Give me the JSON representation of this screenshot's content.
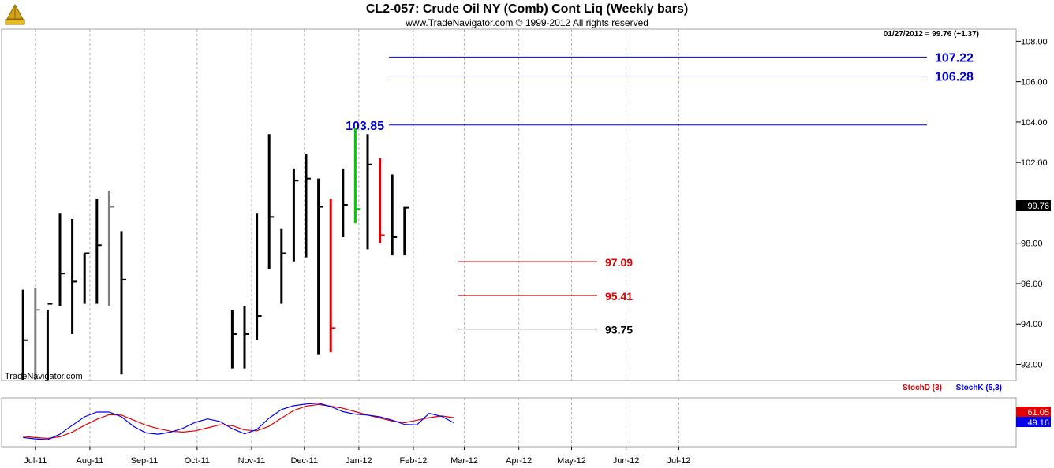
{
  "header": {
    "title": "CL2-057:  Crude Oil NY (Comb) Cont Liq  (Weekly bars)",
    "subtitle": "www.TradeNavigator.com © 1999-2012 All rights reserved",
    "readout": "01/27/2012 = 99.76 (+1.37)",
    "watermark": "TradeNavigator.com"
  },
  "colors": {
    "bar_default": "#000000",
    "bar_gray": "#808080",
    "bar_red": "#e00000",
    "bar_green": "#00cc00",
    "resistance": "#0000cc",
    "support_red": "#e00000",
    "support_black": "#000000",
    "stoch_d": "#e00000",
    "stoch_k": "#0000ee"
  },
  "chart_data": [
    {
      "type": "ohlc",
      "title": "CL2-057:  Crude Oil NY (Comb) Cont Liq  (Weekly bars)",
      "x_ticks": [
        "Jul-11",
        "Aug-11",
        "Sep-11",
        "Oct-11",
        "Nov-11",
        "Dec-11",
        "Jan-12",
        "Feb-12",
        "Mar-12",
        "Apr-12",
        "May-12",
        "Jun-12",
        "Jul-12"
      ],
      "ylim": [
        91.2,
        108.6
      ],
      "y_ticks": [
        "92.00",
        "94.00",
        "96.00",
        "98.00",
        "100.00",
        "102.00",
        "104.00",
        "106.00",
        "108.00"
      ],
      "last_price": "99.76",
      "bars": [
        {
          "week": "2011-06-24",
          "high": 95.7,
          "low": 91.2,
          "close": 93.2,
          "color": "black"
        },
        {
          "week": "2011-07-01",
          "high": 95.8,
          "low": 91.2,
          "close": 94.7,
          "color": "gray"
        },
        {
          "week": "2011-07-08",
          "high": 94.7,
          "low": 91.2,
          "close": 95.0,
          "color": "black"
        },
        {
          "week": "2011-07-15",
          "high": 99.5,
          "low": 94.9,
          "close": 96.5,
          "color": "black"
        },
        {
          "week": "2011-07-22",
          "high": 99.2,
          "low": 93.5,
          "close": 96.1,
          "color": "black"
        },
        {
          "week": "2011-07-29",
          "high": 97.5,
          "low": 95.0,
          "close": 97.5,
          "color": "black"
        },
        {
          "week": "2011-08-05",
          "high": 100.2,
          "low": 95.0,
          "close": 97.9,
          "color": "black"
        },
        {
          "week": "2011-08-12",
          "high": 100.6,
          "low": 94.9,
          "close": 99.8,
          "color": "gray"
        },
        {
          "week": "2011-08-19",
          "high": 98.6,
          "low": 91.5,
          "close": 96.2,
          "color": "black"
        },
        {
          "week": "2011-10-21",
          "high": 94.7,
          "low": 91.8,
          "close": 93.5,
          "color": "black"
        },
        {
          "week": "2011-10-28",
          "high": 94.9,
          "low": 91.8,
          "close": 93.5,
          "color": "black"
        },
        {
          "week": "2011-11-04",
          "high": 99.5,
          "low": 93.2,
          "close": 94.4,
          "color": "black"
        },
        {
          "week": "2011-11-11",
          "high": 103.4,
          "low": 96.7,
          "close": 99.3,
          "color": "black"
        },
        {
          "week": "2011-11-18",
          "high": 98.7,
          "low": 95.0,
          "close": 97.5,
          "color": "black"
        },
        {
          "week": "2011-11-25",
          "high": 101.7,
          "low": 97.1,
          "close": 101.1,
          "color": "black"
        },
        {
          "week": "2011-12-02",
          "high": 102.4,
          "low": 97.3,
          "close": 101.2,
          "color": "black"
        },
        {
          "week": "2011-12-09",
          "high": 101.2,
          "low": 92.5,
          "close": 99.8,
          "color": "black"
        },
        {
          "week": "2011-12-16",
          "high": 100.2,
          "low": 92.6,
          "close": 93.8,
          "color": "red"
        },
        {
          "week": "2011-12-23",
          "high": 101.7,
          "low": 98.3,
          "close": 99.9,
          "color": "black"
        },
        {
          "week": "2011-12-30",
          "high": 103.7,
          "low": 99.0,
          "close": 99.7,
          "color": "green"
        },
        {
          "week": "2012-01-06",
          "high": 103.4,
          "low": 97.7,
          "close": 101.9,
          "color": "black"
        },
        {
          "week": "2012-01-13",
          "high": 102.2,
          "low": 98.0,
          "close": 98.4,
          "color": "red"
        },
        {
          "week": "2012-01-20",
          "high": 101.4,
          "low": 97.4,
          "close": 98.3,
          "color": "black"
        },
        {
          "week": "2012-01-27",
          "high": 99.8,
          "low": 97.4,
          "close": 99.76,
          "color": "black"
        }
      ],
      "levels": [
        {
          "value": 107.22,
          "label": "107.22",
          "color": "blue"
        },
        {
          "value": 106.28,
          "label": "106.28",
          "color": "blue"
        },
        {
          "value": 103.85,
          "label": "103.85",
          "color": "blue"
        },
        {
          "value": 97.09,
          "label": "97.09",
          "color": "red"
        },
        {
          "value": 95.41,
          "label": "95.41",
          "color": "red"
        },
        {
          "value": 93.75,
          "label": "93.75",
          "color": "black"
        }
      ]
    },
    {
      "type": "line",
      "ylim": [
        0,
        100
      ],
      "series": [
        {
          "name": "StochD (3)",
          "color": "red",
          "last_value": "61.05",
          "values": [
            {
              "week": "2011-06-24",
              "value": 17
            },
            {
              "week": "2011-07-01",
              "value": 14
            },
            {
              "week": "2011-07-08",
              "value": 12
            },
            {
              "week": "2011-07-15",
              "value": 16
            },
            {
              "week": "2011-07-22",
              "value": 27
            },
            {
              "week": "2011-07-29",
              "value": 43
            },
            {
              "week": "2011-08-05",
              "value": 57
            },
            {
              "week": "2011-08-12",
              "value": 68
            },
            {
              "week": "2011-08-19",
              "value": 67
            },
            {
              "week": "2011-08-26",
              "value": 55
            },
            {
              "week": "2011-09-02",
              "value": 43
            },
            {
              "week": "2011-09-09",
              "value": 35
            },
            {
              "week": "2011-09-16",
              "value": 29
            },
            {
              "week": "2011-09-23",
              "value": 27
            },
            {
              "week": "2011-09-30",
              "value": 30
            },
            {
              "week": "2011-10-07",
              "value": 37
            },
            {
              "week": "2011-10-14",
              "value": 44
            },
            {
              "week": "2011-10-21",
              "value": 42
            },
            {
              "week": "2011-10-28",
              "value": 32
            },
            {
              "week": "2011-11-04",
              "value": 30
            },
            {
              "week": "2011-11-11",
              "value": 41
            },
            {
              "week": "2011-11-18",
              "value": 60
            },
            {
              "week": "2011-11-25",
              "value": 78
            },
            {
              "week": "2011-12-02",
              "value": 88
            },
            {
              "week": "2011-12-09",
              "value": 92
            },
            {
              "week": "2011-12-16",
              "value": 88
            },
            {
              "week": "2011-12-23",
              "value": 83
            },
            {
              "week": "2011-12-30",
              "value": 75
            },
            {
              "week": "2012-01-06",
              "value": 67
            },
            {
              "week": "2012-01-13",
              "value": 60
            },
            {
              "week": "2012-01-20",
              "value": 53
            },
            {
              "week": "2012-01-27",
              "value": 49
            },
            {
              "week": "2012-02-03",
              "value": 55
            },
            {
              "week": "2012-02-10",
              "value": 61
            },
            {
              "week": "2012-02-17",
              "value": 65
            },
            {
              "week": "2012-02-24",
              "value": 61
            }
          ]
        },
        {
          "name": "StochK (5,3)",
          "color": "blue",
          "last_value": "49.16",
          "values": [
            {
              "week": "2011-06-24",
              "value": 14
            },
            {
              "week": "2011-07-01",
              "value": 11
            },
            {
              "week": "2011-07-08",
              "value": 9
            },
            {
              "week": "2011-07-15",
              "value": 22
            },
            {
              "week": "2011-07-22",
              "value": 43
            },
            {
              "week": "2011-07-29",
              "value": 63
            },
            {
              "week": "2011-08-05",
              "value": 74
            },
            {
              "week": "2011-08-12",
              "value": 74
            },
            {
              "week": "2011-08-19",
              "value": 63
            },
            {
              "week": "2011-08-26",
              "value": 40
            },
            {
              "week": "2011-09-02",
              "value": 25
            },
            {
              "week": "2011-09-09",
              "value": 22
            },
            {
              "week": "2011-09-16",
              "value": 27
            },
            {
              "week": "2011-09-23",
              "value": 36
            },
            {
              "week": "2011-09-30",
              "value": 50
            },
            {
              "week": "2011-10-07",
              "value": 58
            },
            {
              "week": "2011-10-14",
              "value": 52
            },
            {
              "week": "2011-10-21",
              "value": 35
            },
            {
              "week": "2011-10-28",
              "value": 23
            },
            {
              "week": "2011-11-04",
              "value": 33
            },
            {
              "week": "2011-11-11",
              "value": 60
            },
            {
              "week": "2011-11-18",
              "value": 80
            },
            {
              "week": "2011-11-25",
              "value": 89
            },
            {
              "week": "2011-12-02",
              "value": 93
            },
            {
              "week": "2011-12-09",
              "value": 95
            },
            {
              "week": "2011-12-16",
              "value": 87
            },
            {
              "week": "2011-12-23",
              "value": 75
            },
            {
              "week": "2011-12-30",
              "value": 69
            },
            {
              "week": "2012-01-06",
              "value": 67
            },
            {
              "week": "2012-01-13",
              "value": 63
            },
            {
              "week": "2012-01-20",
              "value": 55
            },
            {
              "week": "2012-01-27",
              "value": 45
            },
            {
              "week": "2012-02-03",
              "value": 44
            },
            {
              "week": "2012-02-10",
              "value": 71
            },
            {
              "week": "2012-02-17",
              "value": 64
            },
            {
              "week": "2012-02-24",
              "value": 49
            }
          ]
        }
      ]
    }
  ]
}
